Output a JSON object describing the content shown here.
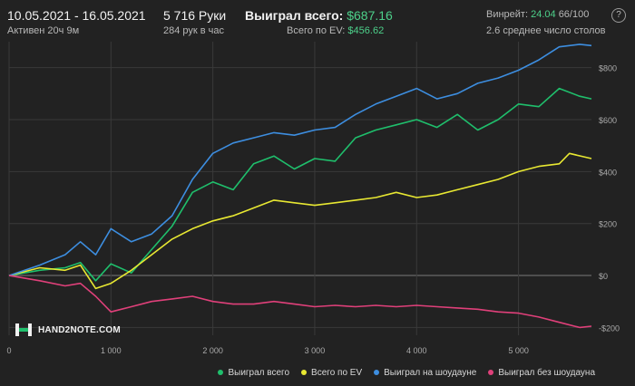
{
  "header": {
    "date_range": "10.05.2021 - 16.05.2021",
    "active": "Активен 20ч 9м",
    "hands": "5 716 Руки",
    "hands_per_hour": "284 рук в час",
    "won_total_label": "Выиграл всего:",
    "won_total_value": "$687.16",
    "ev_total_label": "Всего по EV:",
    "ev_total_value": "$456.62",
    "winrate_label": "Винрейт:",
    "winrate_value": "24.04",
    "winrate_tail": "66/100",
    "avg_tables": "2.6 среднее число столов"
  },
  "logo": {
    "text": "HAND2NOTE.COM"
  },
  "colors": {
    "background": "#222222",
    "grid": "#3a3a3a",
    "zero_line": "#7a7a7a",
    "green": "#1fbf6c",
    "yellow": "#e8e832",
    "blue": "#3d8ee0",
    "pink": "#e0407a"
  },
  "chart_data": {
    "type": "line",
    "title": "",
    "xlabel": "",
    "ylabel": "",
    "xlim": [
      0,
      5716
    ],
    "ylim": [
      -230,
      900
    ],
    "x_ticks": [
      0,
      1000,
      2000,
      3000,
      4000,
      5000
    ],
    "x_tick_labels": [
      "0",
      "1 000",
      "2 000",
      "3 000",
      "4 000",
      "5 000"
    ],
    "y_ticks": [
      -200,
      0,
      200,
      400,
      600,
      800
    ],
    "y_tick_labels": [
      "-$200",
      "$0",
      "$200",
      "$400",
      "$600",
      "$800"
    ],
    "grid": true,
    "legend_position": "bottom-right",
    "series": [
      {
        "name": "Выиграл всего",
        "color": "#1fbf6c",
        "points": [
          [
            0,
            0
          ],
          [
            300,
            20
          ],
          [
            550,
            30
          ],
          [
            700,
            50
          ],
          [
            850,
            -20
          ],
          [
            1000,
            45
          ],
          [
            1200,
            10
          ],
          [
            1400,
            100
          ],
          [
            1600,
            190
          ],
          [
            1800,
            320
          ],
          [
            2000,
            360
          ],
          [
            2200,
            330
          ],
          [
            2400,
            430
          ],
          [
            2600,
            460
          ],
          [
            2800,
            410
          ],
          [
            3000,
            450
          ],
          [
            3200,
            440
          ],
          [
            3400,
            530
          ],
          [
            3600,
            560
          ],
          [
            3800,
            580
          ],
          [
            4000,
            600
          ],
          [
            4200,
            570
          ],
          [
            4400,
            620
          ],
          [
            4600,
            560
          ],
          [
            4800,
            600
          ],
          [
            5000,
            660
          ],
          [
            5200,
            650
          ],
          [
            5400,
            720
          ],
          [
            5600,
            690
          ],
          [
            5716,
            680
          ]
        ]
      },
      {
        "name": "Всего по EV",
        "color": "#e8e832",
        "points": [
          [
            0,
            0
          ],
          [
            300,
            30
          ],
          [
            550,
            20
          ],
          [
            700,
            40
          ],
          [
            850,
            -50
          ],
          [
            1000,
            -30
          ],
          [
            1200,
            20
          ],
          [
            1400,
            80
          ],
          [
            1600,
            140
          ],
          [
            1800,
            180
          ],
          [
            2000,
            210
          ],
          [
            2200,
            230
          ],
          [
            2400,
            260
          ],
          [
            2600,
            290
          ],
          [
            2800,
            280
          ],
          [
            3000,
            270
          ],
          [
            3200,
            280
          ],
          [
            3400,
            290
          ],
          [
            3600,
            300
          ],
          [
            3800,
            320
          ],
          [
            4000,
            300
          ],
          [
            4200,
            310
          ],
          [
            4400,
            330
          ],
          [
            4600,
            350
          ],
          [
            4800,
            370
          ],
          [
            5000,
            400
          ],
          [
            5200,
            420
          ],
          [
            5400,
            430
          ],
          [
            5500,
            470
          ],
          [
            5716,
            450
          ]
        ]
      },
      {
        "name": "Выиграл на шоудауне",
        "color": "#3d8ee0",
        "points": [
          [
            0,
            0
          ],
          [
            300,
            40
          ],
          [
            550,
            80
          ],
          [
            700,
            130
          ],
          [
            850,
            80
          ],
          [
            1000,
            180
          ],
          [
            1200,
            130
          ],
          [
            1400,
            160
          ],
          [
            1600,
            230
          ],
          [
            1800,
            370
          ],
          [
            2000,
            470
          ],
          [
            2200,
            510
          ],
          [
            2400,
            530
          ],
          [
            2600,
            550
          ],
          [
            2800,
            540
          ],
          [
            3000,
            560
          ],
          [
            3200,
            570
          ],
          [
            3400,
            620
          ],
          [
            3600,
            660
          ],
          [
            3800,
            690
          ],
          [
            4000,
            720
          ],
          [
            4200,
            680
          ],
          [
            4400,
            700
          ],
          [
            4600,
            740
          ],
          [
            4800,
            760
          ],
          [
            5000,
            790
          ],
          [
            5200,
            830
          ],
          [
            5400,
            880
          ],
          [
            5600,
            890
          ],
          [
            5716,
            885
          ]
        ]
      },
      {
        "name": "Выиграл без шоудауна",
        "color": "#e0407a",
        "points": [
          [
            0,
            0
          ],
          [
            300,
            -20
          ],
          [
            550,
            -40
          ],
          [
            700,
            -30
          ],
          [
            850,
            -80
          ],
          [
            1000,
            -140
          ],
          [
            1200,
            -120
          ],
          [
            1400,
            -100
          ],
          [
            1600,
            -90
          ],
          [
            1800,
            -80
          ],
          [
            2000,
            -100
          ],
          [
            2200,
            -110
          ],
          [
            2400,
            -110
          ],
          [
            2600,
            -100
          ],
          [
            2800,
            -110
          ],
          [
            3000,
            -120
          ],
          [
            3200,
            -115
          ],
          [
            3400,
            -120
          ],
          [
            3600,
            -115
          ],
          [
            3800,
            -120
          ],
          [
            4000,
            -115
          ],
          [
            4200,
            -120
          ],
          [
            4400,
            -125
          ],
          [
            4600,
            -130
          ],
          [
            4800,
            -140
          ],
          [
            5000,
            -145
          ],
          [
            5200,
            -160
          ],
          [
            5400,
            -180
          ],
          [
            5600,
            -200
          ],
          [
            5716,
            -195
          ]
        ]
      }
    ]
  }
}
